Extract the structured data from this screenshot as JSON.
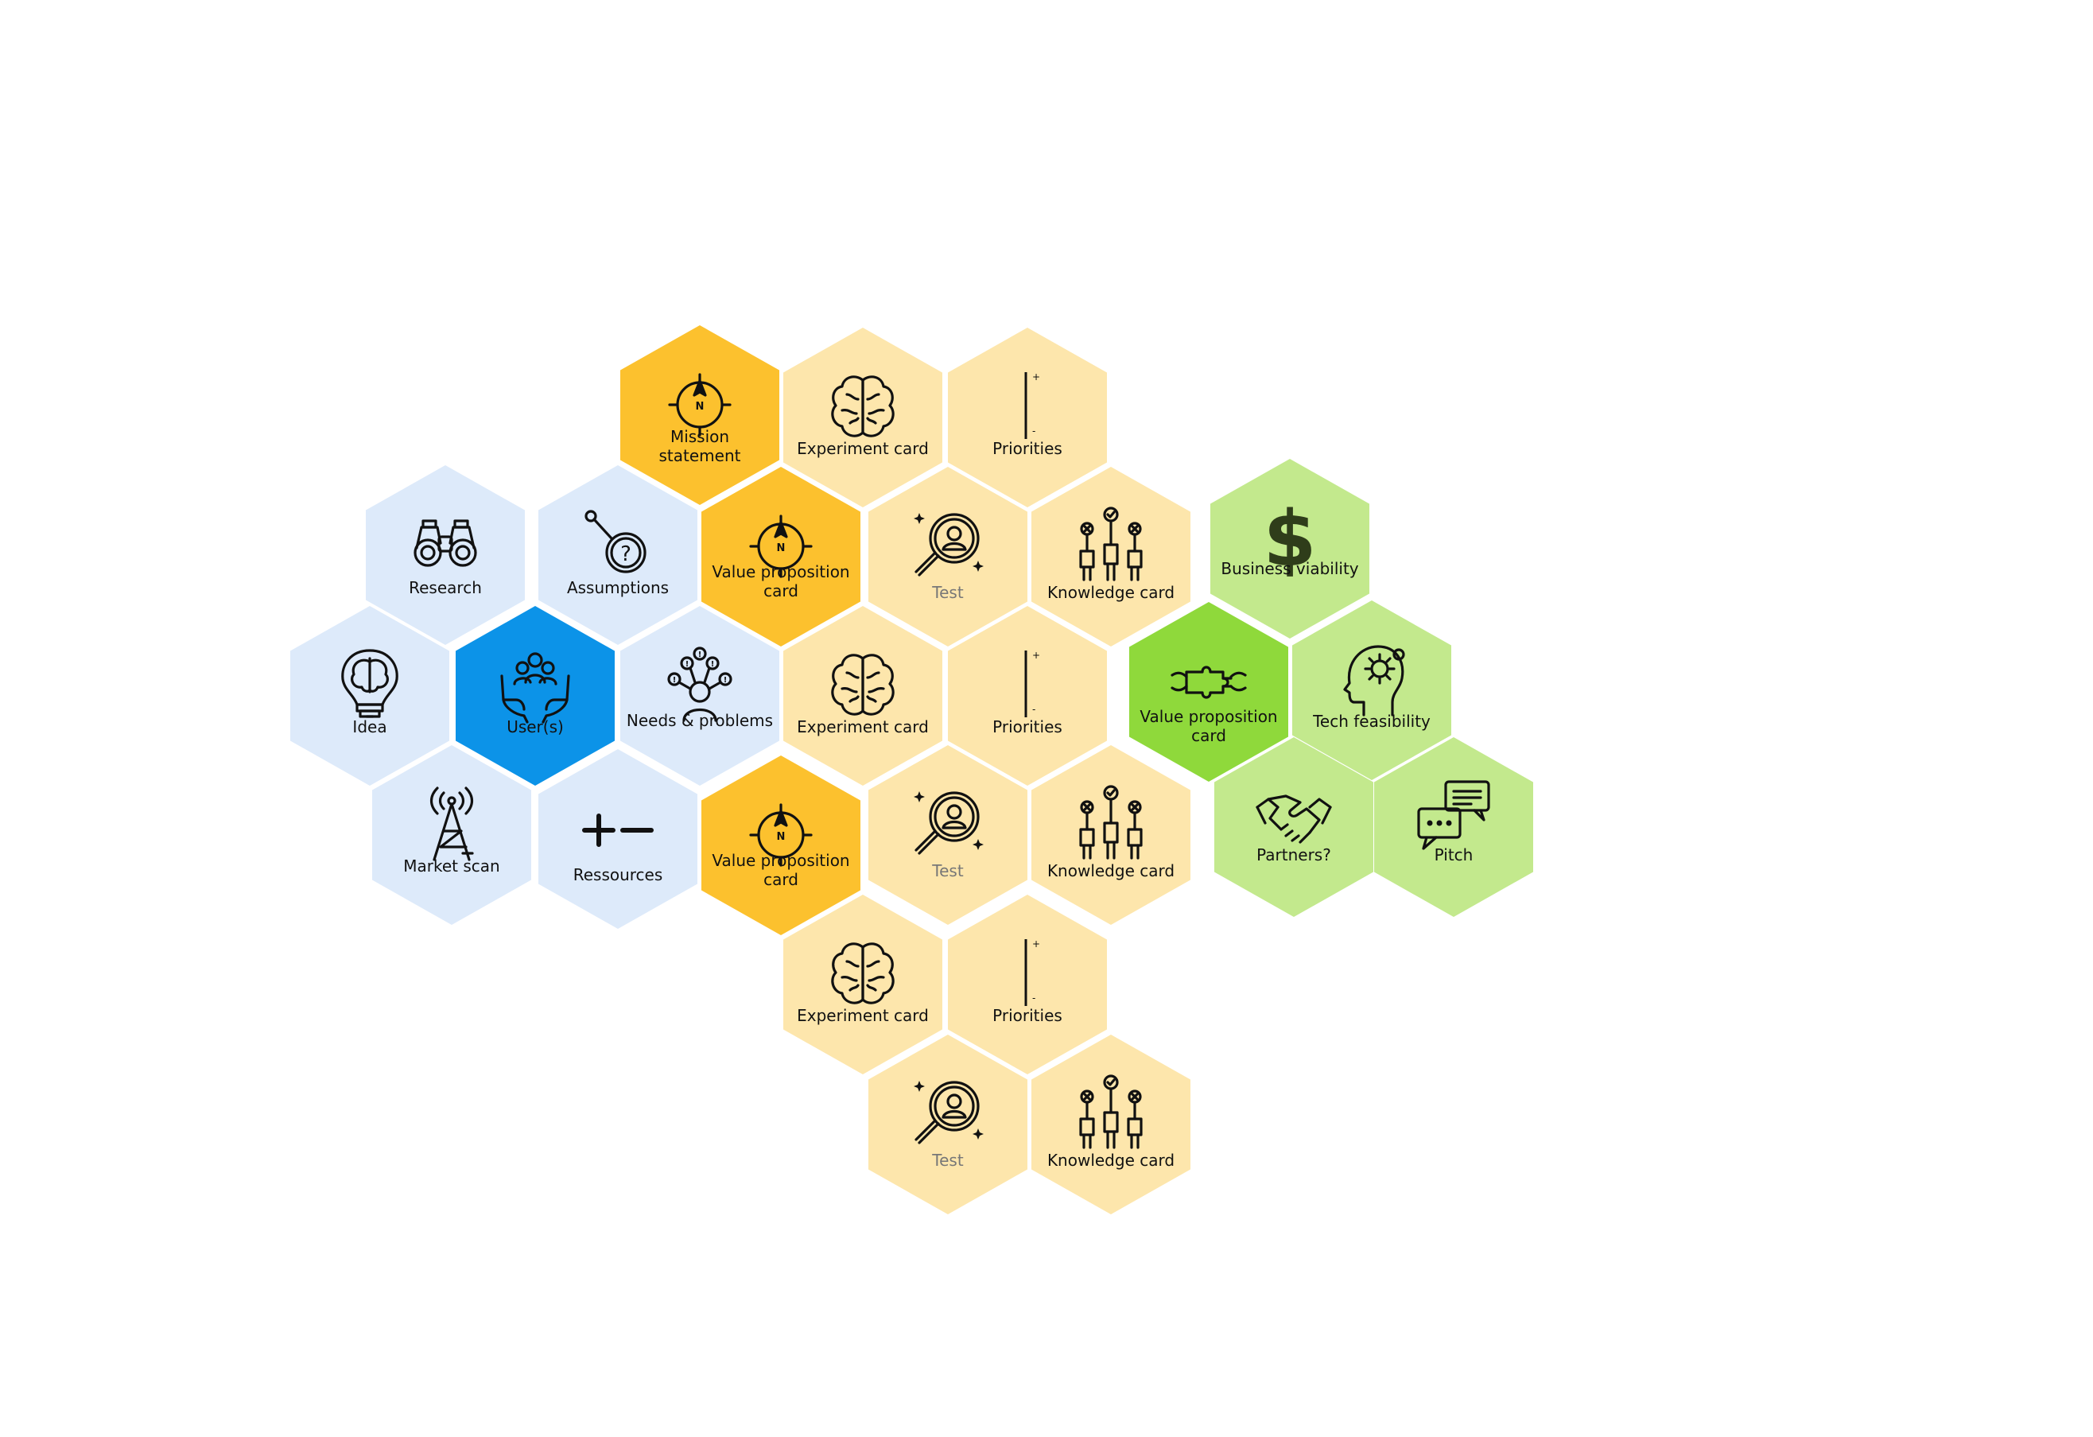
{
  "palette": {
    "blue-light": "#ddeafa",
    "blue-dark": "#0c93e8",
    "orange-dark": "#fcc12e",
    "orange-light": "#fde6ac",
    "green-light": "#c3e98d",
    "green-dark": "#8fd93b",
    "icon-stroke": "#111111"
  },
  "hexes": [
    {
      "id": "mission-statement",
      "label": "Mission\nstatement",
      "icon": "compass-icon",
      "color": "orange-dark"
    },
    {
      "id": "experiment-card-1",
      "label": "Experiment card",
      "icon": "brain-icon",
      "color": "orange-light"
    },
    {
      "id": "priorities-1",
      "label": "Priorities",
      "icon": "priority-scale-icon",
      "color": "orange-light"
    },
    {
      "id": "research",
      "label": "Research",
      "icon": "binoculars-icon",
      "color": "blue-light"
    },
    {
      "id": "assumptions",
      "label": "Assumptions",
      "icon": "question-magnifier-icon",
      "color": "blue-light"
    },
    {
      "id": "value-proposition-1",
      "label": "Value proposition\ncard",
      "icon": "compass-icon",
      "color": "orange-dark"
    },
    {
      "id": "test-1",
      "label": "Test",
      "icon": "user-search-icon",
      "color": "orange-light",
      "muted": true
    },
    {
      "id": "knowledge-card-1",
      "label": "Knowledge card",
      "icon": "voting-hands-icon",
      "color": "orange-light"
    },
    {
      "id": "business-viability",
      "label": "Business viability",
      "icon": "dollar-icon",
      "color": "green-light"
    },
    {
      "id": "idea",
      "label": "Idea",
      "icon": "lightbulb-brain-icon",
      "color": "blue-light"
    },
    {
      "id": "users",
      "label": "User(s)",
      "icon": "hands-group-icon",
      "color": "blue-dark"
    },
    {
      "id": "needs-problems",
      "label": "Needs & problems",
      "icon": "person-problems-icon",
      "color": "blue-light"
    },
    {
      "id": "experiment-card-2",
      "label": "Experiment card",
      "icon": "brain-icon",
      "color": "orange-light"
    },
    {
      "id": "priorities-2",
      "label": "Priorities",
      "icon": "priority-scale-icon",
      "color": "orange-light"
    },
    {
      "id": "value-proposition-green",
      "label": "Value proposition\ncard",
      "icon": "puzzle-connect-icon",
      "color": "green-dark"
    },
    {
      "id": "tech-feasibility",
      "label": "Tech feasibility",
      "icon": "head-gear-icon",
      "color": "green-light"
    },
    {
      "id": "market-scan",
      "label": "Market scan",
      "icon": "antenna-tower-icon",
      "color": "blue-light"
    },
    {
      "id": "ressources",
      "label": "Ressources",
      "icon": "plus-minus-icon",
      "color": "blue-light"
    },
    {
      "id": "value-proposition-2",
      "label": "Value proposition\ncard",
      "icon": "compass-icon",
      "color": "orange-dark"
    },
    {
      "id": "test-2",
      "label": "Test",
      "icon": "user-search-icon",
      "color": "orange-light",
      "muted": true
    },
    {
      "id": "knowledge-card-2",
      "label": "Knowledge card",
      "icon": "voting-hands-icon",
      "color": "orange-light"
    },
    {
      "id": "partners",
      "label": "Partners?",
      "icon": "handshake-icon",
      "color": "green-light"
    },
    {
      "id": "pitch",
      "label": "Pitch",
      "icon": "chat-bubbles-icon",
      "color": "green-light"
    },
    {
      "id": "experiment-card-3",
      "label": "Experiment card",
      "icon": "brain-icon",
      "color": "orange-light"
    },
    {
      "id": "priorities-3",
      "label": "Priorities",
      "icon": "priority-scale-icon",
      "color": "orange-light"
    },
    {
      "id": "test-3",
      "label": "Test",
      "icon": "user-search-icon",
      "color": "orange-light",
      "muted": true
    },
    {
      "id": "knowledge-card-3",
      "label": "Knowledge card",
      "icon": "voting-hands-icon",
      "color": "orange-light"
    }
  ]
}
